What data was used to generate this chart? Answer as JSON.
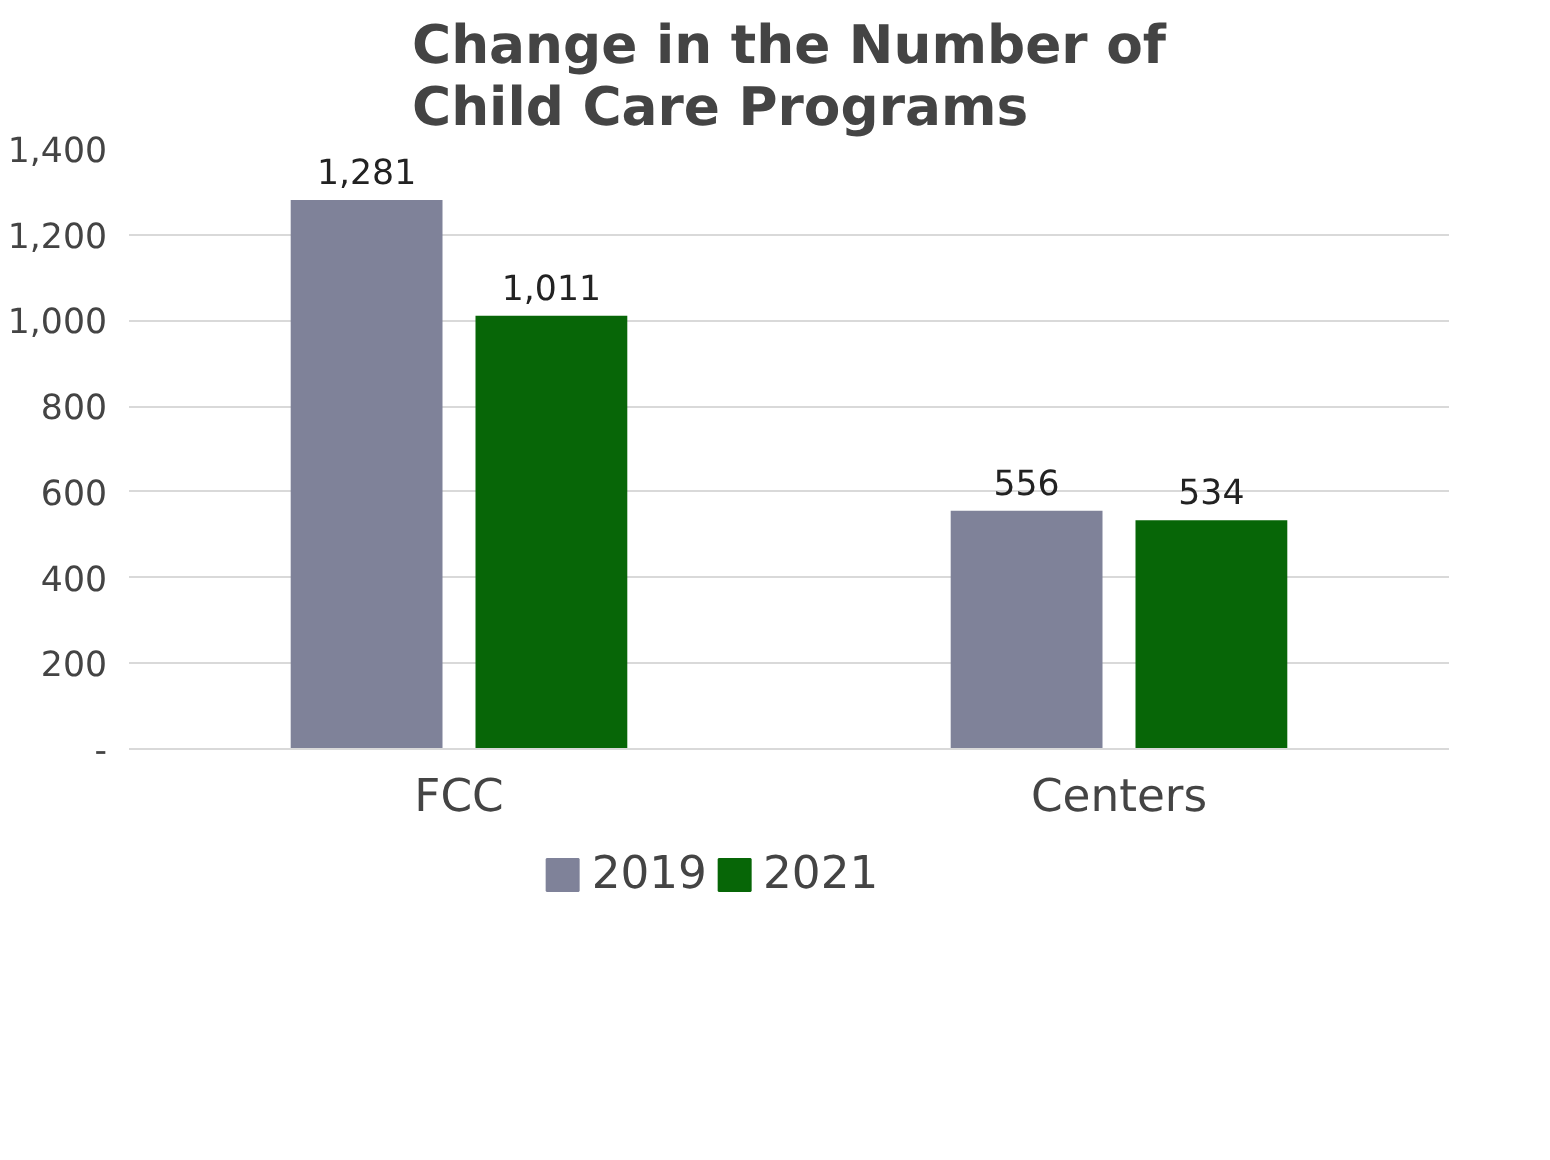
{
  "chart_data": {
    "type": "bar",
    "title": "Change in the Number of\nChild Care Programs",
    "categories": [
      "FCC",
      "Centers"
    ],
    "series": [
      {
        "name": "2019",
        "color": "#7f8299",
        "values": [
          1281,
          556
        ],
        "value_labels": [
          "1,281",
          "556"
        ]
      },
      {
        "name": "2021",
        "color": "#076607",
        "values": [
          1011,
          534
        ],
        "value_labels": [
          "1,011",
          "534"
        ]
      }
    ],
    "ylim": [
      0,
      1400
    ],
    "yticks": [
      {
        "value": 0,
        "label": "-"
      },
      {
        "value": 200,
        "label": "200"
      },
      {
        "value": 400,
        "label": "400"
      },
      {
        "value": 600,
        "label": "600"
      },
      {
        "value": 800,
        "label": "800"
      },
      {
        "value": 1000,
        "label": "1,000"
      },
      {
        "value": 1200,
        "label": "1,200"
      },
      {
        "value": 1400,
        "label": "1,400"
      }
    ],
    "grid": "y",
    "legend": "bottom"
  }
}
